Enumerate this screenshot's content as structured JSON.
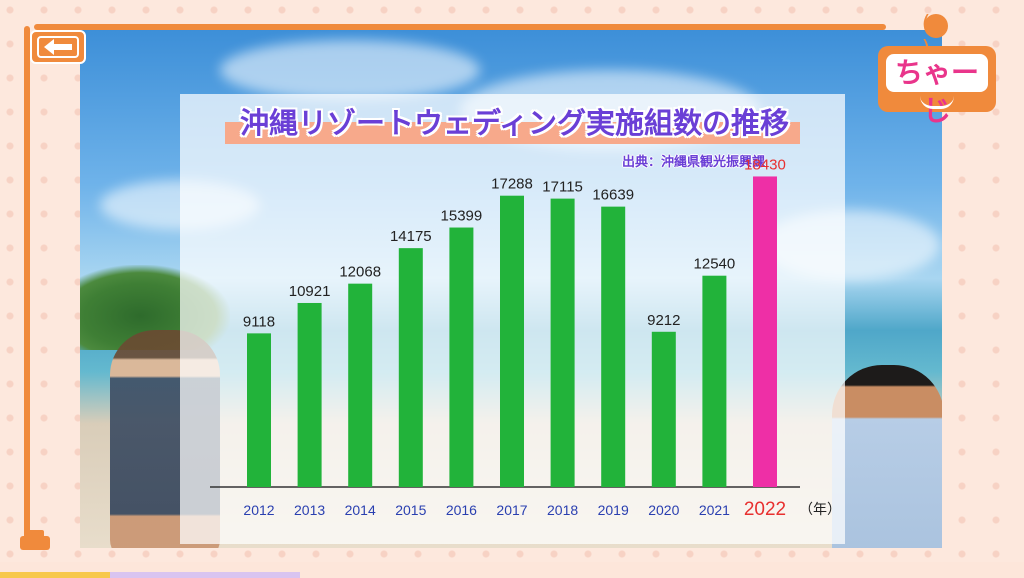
{
  "brand": {
    "logo_text": "ちゃーじ"
  },
  "colors": {
    "bar_default": "#22b33a",
    "bar_highlight": "#ee2fa6",
    "highlight_label": "#e8302f",
    "axis_label": "#2a3fb0",
    "title_color": "#6a3fd6",
    "accent": "#f08a3c"
  },
  "icons": {
    "back": "back-arrow-icon"
  },
  "chart_data": {
    "type": "bar",
    "title": "沖縄リゾートウェディング実施組数の推移",
    "subtitle": "出典：沖縄県観光振興課",
    "x_unit": "（年）",
    "categories": [
      "2012",
      "2013",
      "2014",
      "2015",
      "2016",
      "2017",
      "2018",
      "2019",
      "2020",
      "2021",
      "2022"
    ],
    "values": [
      9118,
      10921,
      12068,
      14175,
      15399,
      17288,
      17115,
      16639,
      9212,
      12540,
      18430
    ],
    "highlight_index": 10,
    "ylim": [
      0,
      20000
    ],
    "grid": false,
    "legend": "none"
  }
}
